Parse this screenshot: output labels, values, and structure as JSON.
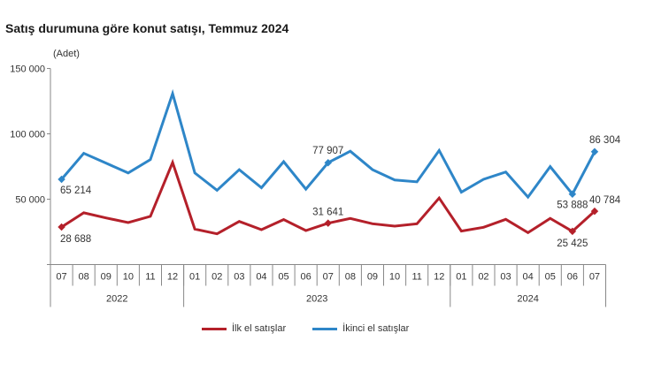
{
  "chart_data": {
    "type": "line",
    "title": "Satış durumuna göre konut satışı, Temmuz 2024",
    "ylabel": "(Adet)",
    "ylim": [
      0,
      150000
    ],
    "yticks": [
      "50 000",
      "100 000",
      "150 000"
    ],
    "ytick_values": [
      50000,
      100000,
      150000
    ],
    "months": [
      "07",
      "08",
      "09",
      "10",
      "11",
      "12",
      "01",
      "02",
      "03",
      "04",
      "05",
      "06",
      "07",
      "08",
      "09",
      "10",
      "11",
      "12",
      "01",
      "02",
      "03",
      "04",
      "05",
      "06",
      "07"
    ],
    "years": [
      {
        "label": "2022",
        "span": 6
      },
      {
        "label": "2023",
        "span": 12
      },
      {
        "label": "2024",
        "span": 7
      }
    ],
    "grid": false,
    "legend": "bottom",
    "series": [
      {
        "name": "İlk el satışlar",
        "color": "#b4202a",
        "values": [
          28688,
          39600,
          35700,
          32100,
          36900,
          78100,
          27100,
          23500,
          33000,
          26700,
          34400,
          26000,
          31641,
          35300,
          31200,
          29400,
          31200,
          50900,
          25600,
          28500,
          34600,
          24400,
          35300,
          25425,
          40784
        ],
        "labels": {
          "0": "28 688",
          "12": "31 641",
          "23": "25 425",
          "24": "40 784"
        }
      },
      {
        "name": "İkinci el satışlar",
        "color": "#2e86c8",
        "values": [
          65214,
          85100,
          77600,
          70100,
          80300,
          130800,
          70100,
          56800,
          72600,
          58800,
          78700,
          57700,
          77907,
          86700,
          72600,
          64700,
          63300,
          87300,
          55400,
          65200,
          70800,
          51600,
          74900,
          53888,
          86304
        ],
        "labels": {
          "0": "65 214",
          "12": "77 907",
          "23": "53 888",
          "24": "86 304"
        }
      }
    ]
  }
}
